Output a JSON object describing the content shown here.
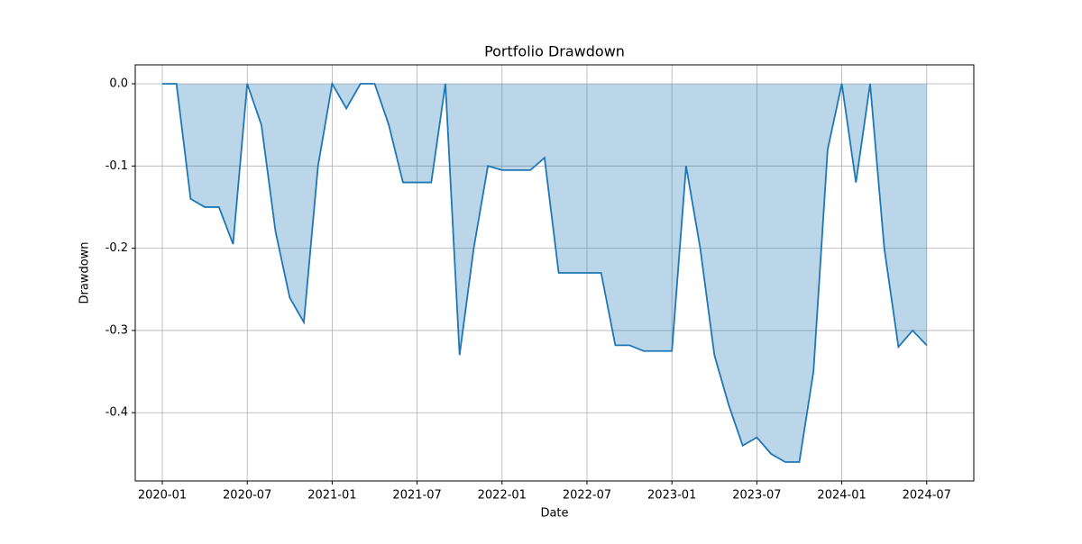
{
  "chart_data": {
    "type": "area",
    "title": "Portfolio Drawdown",
    "x_label": "Date",
    "y_label": "Drawdown",
    "x": [
      "2020-01",
      "2020-02",
      "2020-03",
      "2020-04",
      "2020-05",
      "2020-06",
      "2020-07",
      "2020-08",
      "2020-09",
      "2020-10",
      "2020-11",
      "2020-12",
      "2021-01",
      "2021-02",
      "2021-03",
      "2021-04",
      "2021-05",
      "2021-06",
      "2021-07",
      "2021-08",
      "2021-09",
      "2021-10",
      "2021-11",
      "2021-12",
      "2022-01",
      "2022-02",
      "2022-03",
      "2022-04",
      "2022-05",
      "2022-06",
      "2022-07",
      "2022-08",
      "2022-09",
      "2022-10",
      "2022-11",
      "2022-12",
      "2023-01",
      "2023-02",
      "2023-03",
      "2023-04",
      "2023-05",
      "2023-06",
      "2023-07",
      "2023-08",
      "2023-09",
      "2023-10",
      "2023-11",
      "2023-12",
      "2024-01",
      "2024-02",
      "2024-03",
      "2024-04",
      "2024-05",
      "2024-06",
      "2024-07"
    ],
    "series": [
      {
        "name": "Drawdown",
        "color": "#1f77b4",
        "values": [
          0,
          0,
          -0.14,
          -0.15,
          -0.15,
          -0.195,
          0,
          -0.05,
          -0.18,
          -0.26,
          -0.29,
          -0.1,
          0,
          -0.03,
          0,
          0,
          -0.05,
          -0.12,
          -0.12,
          -0.12,
          0,
          -0.33,
          -0.2,
          -0.1,
          -0.105,
          -0.105,
          -0.105,
          -0.09,
          -0.23,
          -0.23,
          -0.23,
          -0.23,
          -0.318,
          -0.318,
          -0.325,
          -0.325,
          -0.325,
          -0.1,
          -0.2,
          -0.33,
          -0.39,
          -0.44,
          -0.43,
          -0.45,
          -0.46,
          -0.46,
          -0.35,
          -0.08,
          0,
          -0.12,
          0,
          -0.2,
          -0.32,
          -0.3,
          -0.318
        ]
      }
    ],
    "xticks": [
      "2020-01",
      "2020-07",
      "2021-01",
      "2021-07",
      "2022-01",
      "2022-07",
      "2023-01",
      "2023-07",
      "2024-01",
      "2024-07"
    ],
    "ylim": [
      -0.483,
      0.023
    ],
    "yticks": [
      {
        "value": 0,
        "label": "0.0"
      },
      -0.1,
      -0.2,
      -0.3,
      -0.4
    ],
    "grid": true
  }
}
